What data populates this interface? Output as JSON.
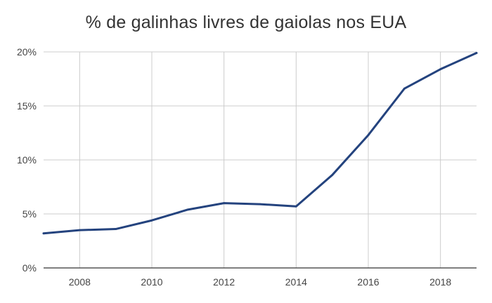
{
  "chart_data": {
    "type": "line",
    "title": "% de galinhas livres de gaiolas nos EUA",
    "xlabel": "",
    "ylabel": "",
    "x": [
      2007,
      2008,
      2009,
      2010,
      2011,
      2012,
      2013,
      2014,
      2015,
      2016,
      2017,
      2018,
      2019
    ],
    "series": [
      {
        "values": [
          3.2,
          3.5,
          3.6,
          4.4,
          5.4,
          6.0,
          5.9,
          5.7,
          8.6,
          12.3,
          16.6,
          18.4,
          19.9
        ]
      }
    ],
    "xlim": [
      2007,
      2019
    ],
    "ylim": [
      0,
      20
    ],
    "x_ticks": [
      2008,
      2010,
      2012,
      2014,
      2016,
      2018
    ],
    "x_tick_labels": [
      "2008",
      "2010",
      "2012",
      "2014",
      "2016",
      "2018"
    ],
    "y_ticks": [
      0,
      5,
      10,
      15,
      20
    ],
    "y_tick_labels": [
      "0%",
      "5%",
      "10%",
      "15%",
      "20%"
    ],
    "grid": "vertical-and-horizontal",
    "line_color": "#24437e",
    "grid_color": "#cccccc",
    "axis_color": "#333333"
  }
}
